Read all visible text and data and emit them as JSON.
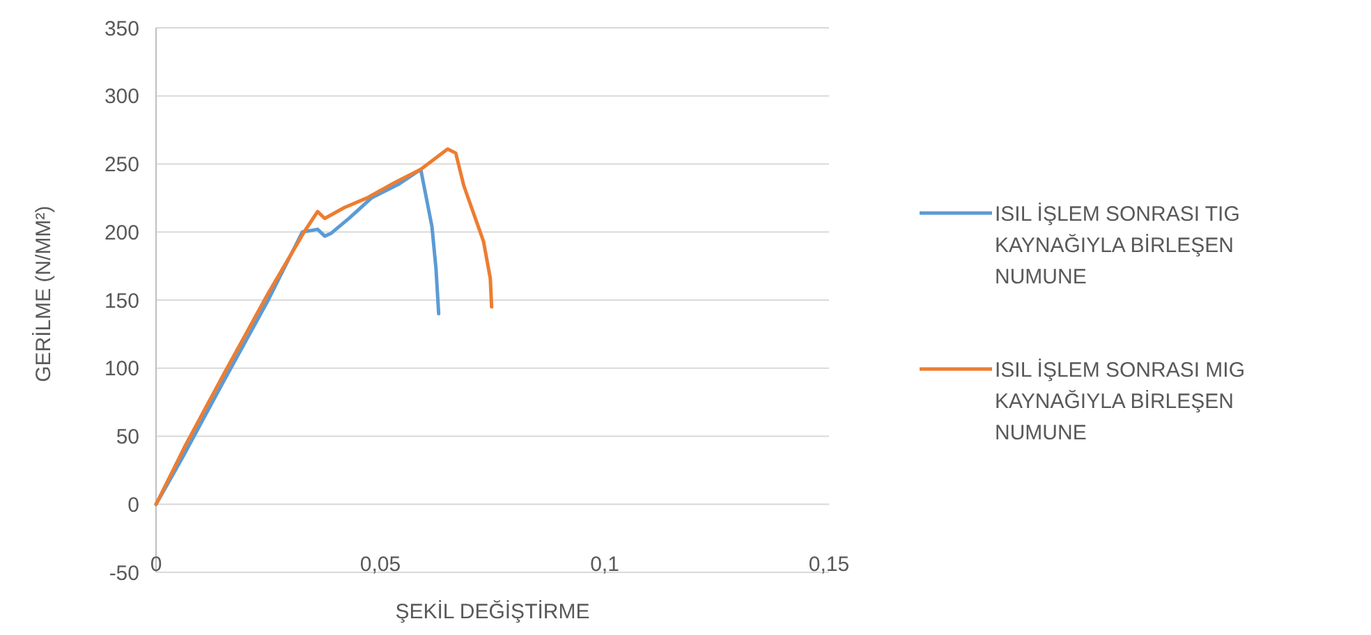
{
  "chart_data": {
    "type": "line",
    "xlabel": "ŞEKİL DEĞİŞTİRME",
    "ylabel": "GERİLME (N/MM²)",
    "xlim": [
      0,
      0.15
    ],
    "xticks": [
      {
        "value": 0,
        "label": "0"
      },
      {
        "value": 0.05,
        "label": "0,05"
      },
      {
        "value": 0.1,
        "label": "0,1"
      },
      {
        "value": 0.15,
        "label": "0,15"
      }
    ],
    "ylim": [
      -50,
      350
    ],
    "yticks": [
      -50,
      0,
      50,
      100,
      150,
      200,
      250,
      300,
      350
    ],
    "grid": "y",
    "legend": "right",
    "marker": "none",
    "line_style": "solid",
    "series": [
      {
        "name": "ISIL İŞLEM SONRASI TIG KAYNAĞIYLA BİRLEŞEN NUMUNE",
        "color": "#5b9bd5",
        "x": [
          0,
          0.006,
          0.015,
          0.025,
          0.0326,
          0.036,
          0.0376,
          0.039,
          0.043,
          0.048,
          0.054,
          0.059,
          0.0593,
          0.0615,
          0.0624,
          0.063
        ],
        "values": [
          0,
          35,
          90,
          150,
          200,
          202,
          197,
          199,
          210,
          225,
          235,
          246,
          241,
          204,
          173,
          140
        ]
      },
      {
        "name": "ISIL İŞLEM SONRASI MIG KAYNAĞIYLA BİRLEŞEN NUMUNE",
        "color": "#ed7d31",
        "x": [
          0,
          0.0065,
          0.015,
          0.025,
          0.033,
          0.036,
          0.0376,
          0.042,
          0.047,
          0.053,
          0.059,
          0.065,
          0.0668,
          0.0686,
          0.073,
          0.0745,
          0.0748
        ],
        "values": [
          0,
          43,
          95,
          155,
          200,
          215,
          210,
          218,
          225,
          236,
          246,
          261,
          258,
          234,
          193,
          166,
          145
        ]
      }
    ]
  }
}
